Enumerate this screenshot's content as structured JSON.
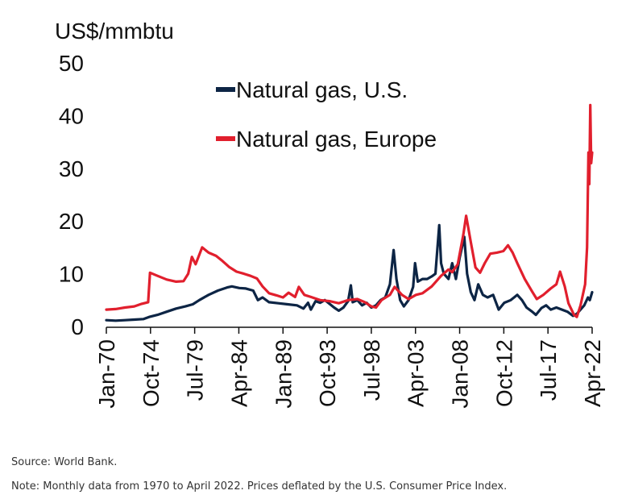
{
  "colors": {
    "us": "#0d2545",
    "europe": "#e11f2d",
    "axis": "#111111"
  },
  "footer": {
    "source": "Source: World Bank.",
    "note": "Note: Monthly data from 1970 to April 2022. Prices deflated by the U.S. Consumer Price Index."
  },
  "chart_data": {
    "type": "line",
    "title": "",
    "ylabel": "US$/mmbtu",
    "xlabel": "",
    "ylim": [
      0,
      50
    ],
    "yticks": [
      "0",
      "10",
      "20",
      "30",
      "40",
      "50"
    ],
    "xlim": [
      1970.0,
      2022.25
    ],
    "xticks": [
      {
        "label": "Jan-70",
        "x": 1970.0
      },
      {
        "label": "Oct-74",
        "x": 1974.75
      },
      {
        "label": "Jul-79",
        "x": 1979.5
      },
      {
        "label": "Apr-84",
        "x": 1984.25
      },
      {
        "label": "Jan-89",
        "x": 1989.0
      },
      {
        "label": "Oct-93",
        "x": 1993.75
      },
      {
        "label": "Jul-98",
        "x": 1998.5
      },
      {
        "label": "Apr-03",
        "x": 2003.25
      },
      {
        "label": "Jan-08",
        "x": 2008.0
      },
      {
        "label": "Oct-12",
        "x": 2012.75
      },
      {
        "label": "Jul-17",
        "x": 2017.5
      },
      {
        "label": "Apr-22",
        "x": 2022.25
      }
    ],
    "legend": {
      "position": "top-center"
    },
    "series": [
      {
        "name": "Natural gas, U.S.",
        "key": "us",
        "points": [
          [
            1970.0,
            1.2
          ],
          [
            1971.0,
            1.1
          ],
          [
            1972.0,
            1.2
          ],
          [
            1973.0,
            1.3
          ],
          [
            1974.0,
            1.4
          ],
          [
            1974.6,
            1.8
          ],
          [
            1975.5,
            2.2
          ],
          [
            1976.5,
            2.8
          ],
          [
            1977.5,
            3.4
          ],
          [
            1978.5,
            3.8
          ],
          [
            1979.3,
            4.2
          ],
          [
            1980.0,
            5.0
          ],
          [
            1981.0,
            6.0
          ],
          [
            1982.0,
            6.8
          ],
          [
            1983.0,
            7.4
          ],
          [
            1983.5,
            7.6
          ],
          [
            1984.3,
            7.3
          ],
          [
            1985.0,
            7.2
          ],
          [
            1985.8,
            6.8
          ],
          [
            1986.3,
            5.0
          ],
          [
            1986.8,
            5.5
          ],
          [
            1987.5,
            4.6
          ],
          [
            1988.5,
            4.4
          ],
          [
            1989.5,
            4.2
          ],
          [
            1990.5,
            4.0
          ],
          [
            1991.2,
            3.4
          ],
          [
            1991.7,
            4.5
          ],
          [
            1992.0,
            3.2
          ],
          [
            1992.5,
            4.8
          ],
          [
            1993.0,
            4.5
          ],
          [
            1993.5,
            5.0
          ],
          [
            1994.0,
            4.3
          ],
          [
            1994.5,
            3.6
          ],
          [
            1995.0,
            3.0
          ],
          [
            1995.5,
            3.6
          ],
          [
            1996.0,
            4.8
          ],
          [
            1996.3,
            7.8
          ],
          [
            1996.5,
            4.6
          ],
          [
            1997.0,
            5.0
          ],
          [
            1997.5,
            4.0
          ],
          [
            1998.0,
            4.5
          ],
          [
            1998.5,
            3.6
          ],
          [
            1999.0,
            4.0
          ],
          [
            1999.5,
            5.0
          ],
          [
            2000.0,
            5.5
          ],
          [
            2000.5,
            8.0
          ],
          [
            2000.9,
            14.5
          ],
          [
            2001.2,
            9.0
          ],
          [
            2001.6,
            5.0
          ],
          [
            2002.0,
            3.8
          ],
          [
            2002.5,
            5.0
          ],
          [
            2003.0,
            7.5
          ],
          [
            2003.2,
            12.0
          ],
          [
            2003.5,
            8.5
          ],
          [
            2004.0,
            9.0
          ],
          [
            2004.5,
            9.0
          ],
          [
            2005.0,
            9.5
          ],
          [
            2005.4,
            10.0
          ],
          [
            2005.8,
            19.2
          ],
          [
            2006.0,
            12.0
          ],
          [
            2006.3,
            10.0
          ],
          [
            2006.8,
            9.0
          ],
          [
            2007.2,
            12.0
          ],
          [
            2007.6,
            9.0
          ],
          [
            2008.0,
            13.0
          ],
          [
            2008.5,
            17.0
          ],
          [
            2008.8,
            10.0
          ],
          [
            2009.2,
            6.5
          ],
          [
            2009.6,
            5.0
          ],
          [
            2010.0,
            8.0
          ],
          [
            2010.5,
            6.0
          ],
          [
            2011.0,
            5.5
          ],
          [
            2011.6,
            6.0
          ],
          [
            2012.2,
            3.2
          ],
          [
            2012.8,
            4.5
          ],
          [
            2013.5,
            5.0
          ],
          [
            2014.2,
            6.0
          ],
          [
            2014.7,
            5.0
          ],
          [
            2015.2,
            3.6
          ],
          [
            2015.8,
            2.8
          ],
          [
            2016.2,
            2.2
          ],
          [
            2016.8,
            3.5
          ],
          [
            2017.3,
            4.0
          ],
          [
            2017.8,
            3.2
          ],
          [
            2018.4,
            3.6
          ],
          [
            2019.0,
            3.2
          ],
          [
            2019.6,
            2.8
          ],
          [
            2020.2,
            2.0
          ],
          [
            2020.6,
            2.4
          ],
          [
            2021.0,
            3.2
          ],
          [
            2021.4,
            4.0
          ],
          [
            2021.8,
            5.5
          ],
          [
            2022.0,
            5.0
          ],
          [
            2022.25,
            6.5
          ]
        ]
      },
      {
        "name": "Natural gas, Europe",
        "key": "europe",
        "points": [
          [
            1970.0,
            3.2
          ],
          [
            1971.0,
            3.3
          ],
          [
            1972.0,
            3.6
          ],
          [
            1973.0,
            3.8
          ],
          [
            1973.8,
            4.3
          ],
          [
            1974.5,
            4.6
          ],
          [
            1974.7,
            10.2
          ],
          [
            1975.5,
            9.6
          ],
          [
            1976.5,
            8.9
          ],
          [
            1977.5,
            8.5
          ],
          [
            1978.3,
            8.6
          ],
          [
            1978.8,
            10.0
          ],
          [
            1979.2,
            13.2
          ],
          [
            1979.6,
            11.8
          ],
          [
            1980.3,
            15.0
          ],
          [
            1981.0,
            14.0
          ],
          [
            1981.8,
            13.4
          ],
          [
            1982.5,
            12.4
          ],
          [
            1983.2,
            11.3
          ],
          [
            1984.0,
            10.4
          ],
          [
            1984.8,
            10.0
          ],
          [
            1985.5,
            9.6
          ],
          [
            1986.2,
            9.1
          ],
          [
            1986.8,
            7.6
          ],
          [
            1987.5,
            6.3
          ],
          [
            1988.3,
            5.9
          ],
          [
            1989.0,
            5.5
          ],
          [
            1989.6,
            6.4
          ],
          [
            1990.3,
            5.6
          ],
          [
            1990.7,
            7.5
          ],
          [
            1991.3,
            6.0
          ],
          [
            1992.0,
            5.6
          ],
          [
            1993.0,
            5.0
          ],
          [
            1994.0,
            4.8
          ],
          [
            1995.0,
            4.4
          ],
          [
            1996.0,
            5.0
          ],
          [
            1997.0,
            5.2
          ],
          [
            1997.8,
            4.6
          ],
          [
            1998.5,
            3.8
          ],
          [
            1999.0,
            3.6
          ],
          [
            1999.6,
            5.0
          ],
          [
            2000.5,
            6.0
          ],
          [
            2001.0,
            7.5
          ],
          [
            2001.8,
            6.0
          ],
          [
            2002.5,
            5.2
          ],
          [
            2003.3,
            6.0
          ],
          [
            2004.0,
            6.3
          ],
          [
            2005.0,
            7.6
          ],
          [
            2006.0,
            9.6
          ],
          [
            2006.8,
            10.8
          ],
          [
            2007.2,
            10.3
          ],
          [
            2007.8,
            11.8
          ],
          [
            2008.4,
            17.5
          ],
          [
            2008.7,
            21.0
          ],
          [
            2009.2,
            16.0
          ],
          [
            2009.7,
            11.2
          ],
          [
            2010.2,
            10.2
          ],
          [
            2010.7,
            12.0
          ],
          [
            2011.3,
            13.8
          ],
          [
            2012.0,
            14.0
          ],
          [
            2012.7,
            14.3
          ],
          [
            2013.2,
            15.4
          ],
          [
            2013.7,
            14.0
          ],
          [
            2014.2,
            12.0
          ],
          [
            2015.0,
            9.0
          ],
          [
            2015.8,
            6.6
          ],
          [
            2016.3,
            5.2
          ],
          [
            2017.0,
            6.0
          ],
          [
            2017.8,
            7.2
          ],
          [
            2018.4,
            8.0
          ],
          [
            2018.8,
            10.4
          ],
          [
            2019.3,
            7.6
          ],
          [
            2019.7,
            4.4
          ],
          [
            2020.3,
            2.2
          ],
          [
            2020.6,
            1.8
          ],
          [
            2021.0,
            4.0
          ],
          [
            2021.5,
            8.0
          ],
          [
            2021.7,
            15.0
          ],
          [
            2021.85,
            33.0
          ],
          [
            2021.95,
            27.0
          ],
          [
            2022.05,
            42.0
          ],
          [
            2022.15,
            31.0
          ],
          [
            2022.25,
            33.0
          ]
        ]
      }
    ]
  }
}
